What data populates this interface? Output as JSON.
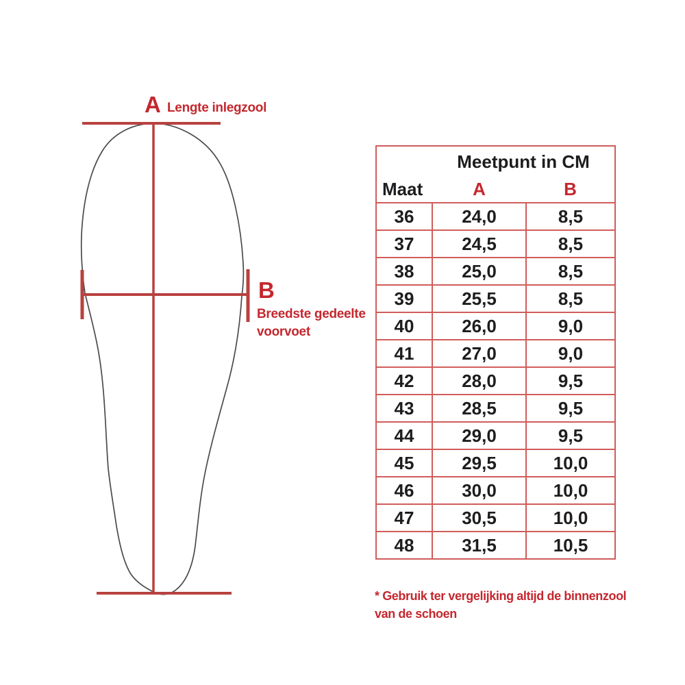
{
  "colors": {
    "red_text": "#c4272e",
    "red_line": "#b8423f",
    "table_border": "#d05c5a",
    "ink": "#1d1d1f",
    "outline": "#4a4a4a",
    "background": "#ffffff"
  },
  "diagram": {
    "label_a": "A",
    "label_a_caption": "Lengte inlegzool",
    "label_b": "B",
    "label_b_caption_line1": "Breedste gedeelte",
    "label_b_caption_line2": "voorvoet"
  },
  "table": {
    "header_title": "Meetpunt in CM",
    "col_maat": "Maat",
    "col_a": "A",
    "col_b": "B",
    "rows": [
      [
        "36",
        "24,0",
        "8,5"
      ],
      [
        "37",
        "24,5",
        "8,5"
      ],
      [
        "38",
        "25,0",
        "8,5"
      ],
      [
        "39",
        "25,5",
        "8,5"
      ],
      [
        "40",
        "26,0",
        "9,0"
      ],
      [
        "41",
        "27,0",
        "9,0"
      ],
      [
        "42",
        "28,0",
        "9,5"
      ],
      [
        "43",
        "28,5",
        "9,5"
      ],
      [
        "44",
        "29,0",
        "9,5"
      ],
      [
        "45",
        "29,5",
        "10,0"
      ],
      [
        "46",
        "30,0",
        "10,0"
      ],
      [
        "47",
        "30,5",
        "10,0"
      ],
      [
        "48",
        "31,5",
        "10,5"
      ]
    ]
  },
  "footnote": {
    "line1": "* Gebruik ter vergelijking altijd de binnenzool",
    "line2": "van de schoen"
  }
}
